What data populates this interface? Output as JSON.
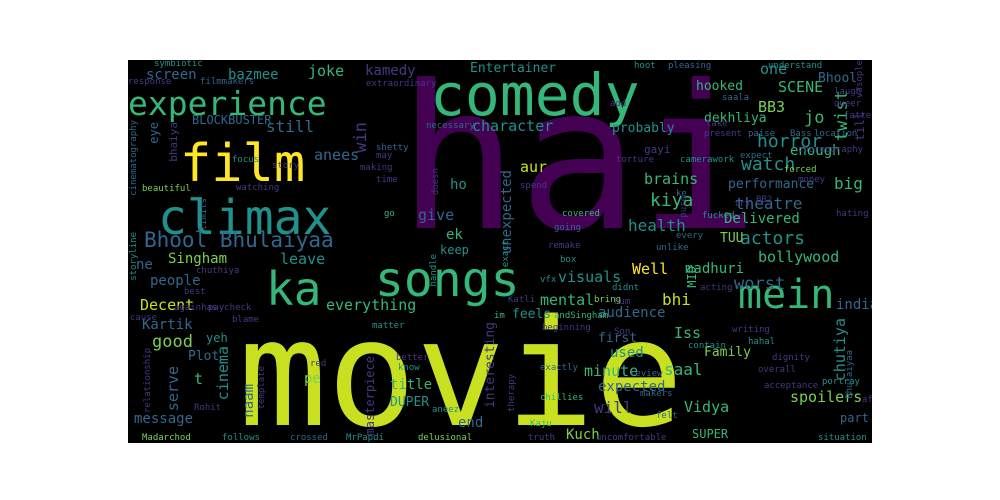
{
  "palette": {
    "background": "#000000",
    "page": "#ffffff",
    "lime": "#c8e020",
    "green": "#7ad151",
    "seafoam": "#35b779",
    "teal": "#21918c",
    "blue": "#31688e",
    "indigo": "#443983",
    "purple": "#440154",
    "yellow": "#fde725"
  },
  "words": [
    {
      "text": "hai",
      "color": "#440154"
    },
    {
      "text": "movie",
      "color": "#c8e020"
    },
    {
      "text": "comedy",
      "color": "#35b779"
    },
    {
      "text": "climax",
      "color": "#21918c"
    },
    {
      "text": "songs",
      "color": "#35b779"
    },
    {
      "text": "film",
      "color": "#fde725"
    },
    {
      "text": "ka",
      "color": "#35b779"
    },
    {
      "text": "experience",
      "color": "#35b779"
    },
    {
      "text": "mein",
      "color": "#35b779"
    },
    {
      "text": "Bhool Bhulaiyaa",
      "color": "#31688e"
    },
    {
      "text": "character",
      "color": "#21918c"
    },
    {
      "text": "actors",
      "color": "#21918c"
    },
    {
      "text": "watch",
      "color": "#21918c"
    },
    {
      "text": "horror",
      "color": "#21918c"
    },
    {
      "text": "theatre",
      "color": "#31688e"
    },
    {
      "text": "kiya",
      "color": "#35b779"
    },
    {
      "text": "twist",
      "color": "#35b779"
    },
    {
      "text": "bollywood",
      "color": "#35b779"
    },
    {
      "text": "worst",
      "color": "#31688e"
    },
    {
      "text": "mental",
      "color": "#35b779"
    },
    {
      "text": "health",
      "color": "#21918c"
    },
    {
      "text": "joke",
      "color": "#35b779"
    },
    {
      "text": "kamedy",
      "color": "#443983"
    },
    {
      "text": "screen",
      "color": "#31688e"
    },
    {
      "text": "bazmee",
      "color": "#21918c"
    },
    {
      "text": "still",
      "color": "#31688e"
    },
    {
      "text": "win",
      "color": "#443983"
    },
    {
      "text": "anees",
      "color": "#31688e"
    },
    {
      "text": "Singham",
      "color": "#7ad151"
    },
    {
      "text": "leave",
      "color": "#21918c"
    },
    {
      "text": "people",
      "color": "#31688e"
    },
    {
      "text": "ne",
      "color": "#31688e"
    },
    {
      "text": "everything",
      "color": "#35b779"
    },
    {
      "text": "Decent",
      "color": "#c8e020"
    },
    {
      "text": "Kartik",
      "color": "#31688e"
    },
    {
      "text": "good",
      "color": "#7ad151"
    },
    {
      "text": "yeh",
      "color": "#21918c"
    },
    {
      "text": "Plot",
      "color": "#31688e"
    },
    {
      "text": "serve",
      "color": "#31688e"
    },
    {
      "text": "t",
      "color": "#35b779"
    },
    {
      "text": "cinema",
      "color": "#21918c"
    },
    {
      "text": "pe",
      "color": "#7ad151"
    },
    {
      "text": "naam",
      "color": "#31688e"
    },
    {
      "text": "message",
      "color": "#31688e"
    },
    {
      "text": "title",
      "color": "#35b779"
    },
    {
      "text": "end",
      "color": "#31688e"
    },
    {
      "text": "Kuch",
      "color": "#7ad151"
    },
    {
      "text": "masterpiece",
      "color": "#443983"
    },
    {
      "text": "DUPER",
      "color": "#21918c"
    },
    {
      "text": "minute",
      "color": "#35b779"
    },
    {
      "text": "saal",
      "color": "#35b779"
    },
    {
      "text": "Vidya",
      "color": "#35b779"
    },
    {
      "text": "spoilers",
      "color": "#7ad151"
    },
    {
      "text": "part",
      "color": "#31688e"
    },
    {
      "text": "SUPER",
      "color": "#35b779"
    },
    {
      "text": "Family",
      "color": "#7ad151"
    },
    {
      "text": "Iss",
      "color": "#35b779"
    },
    {
      "text": "used",
      "color": "#21918c"
    },
    {
      "text": "first",
      "color": "#31688e"
    },
    {
      "text": "expected",
      "color": "#31688e"
    },
    {
      "text": "audience",
      "color": "#31688e"
    },
    {
      "text": "will",
      "color": "#443983"
    },
    {
      "text": "chutiya",
      "color": "#21918c"
    },
    {
      "text": "indian",
      "color": "#31688e"
    },
    {
      "text": "madhuri",
      "color": "#35b779"
    },
    {
      "text": "visuals",
      "color": "#21918c"
    },
    {
      "text": "Well",
      "color": "#fde725"
    },
    {
      "text": "bhi",
      "color": "#c8e020"
    },
    {
      "text": "MID",
      "color": "#35b779"
    },
    {
      "text": "performance",
      "color": "#31688e"
    },
    {
      "text": "enough",
      "color": "#35b779"
    },
    {
      "text": "brains",
      "color": "#35b779"
    },
    {
      "text": "big",
      "color": "#35b779"
    },
    {
      "text": "jo",
      "color": "#35b779"
    },
    {
      "text": "BB3",
      "color": "#7ad151"
    },
    {
      "text": "SCENE",
      "color": "#35b779"
    },
    {
      "text": "one",
      "color": "#21918c"
    },
    {
      "text": "Bhool",
      "color": "#31688e"
    },
    {
      "text": "till",
      "color": "#443983"
    },
    {
      "text": "hooked",
      "color": "#35b779"
    },
    {
      "text": "dekhliya",
      "color": "#35b779"
    },
    {
      "text": "probably",
      "color": "#21918c"
    },
    {
      "text": "aur",
      "color": "#c8e020"
    },
    {
      "text": "give",
      "color": "#31688e"
    },
    {
      "text": "ek",
      "color": "#35b779"
    },
    {
      "text": "keep",
      "color": "#21918c"
    },
    {
      "text": "ho",
      "color": "#21918c"
    },
    {
      "text": "unexpected",
      "color": "#31688e"
    },
    {
      "text": "interesting",
      "color": "#443983"
    },
    {
      "text": "feels",
      "color": "#21918c"
    },
    {
      "text": "gayi",
      "color": "#443983"
    },
    {
      "text": "Delivered",
      "color": "#35b779"
    },
    {
      "text": "TUU",
      "color": "#7ad151"
    },
    {
      "text": "Entertainer",
      "color": "#21918c"
    },
    {
      "text": "BLOCKBUSTER",
      "color": "#31688e"
    },
    {
      "text": "bhaiya",
      "color": "#443983"
    },
    {
      "text": "eye",
      "color": "#31688e"
    },
    {
      "text": "cinematography",
      "color": "#31688e"
    },
    {
      "text": "beautiful",
      "color": "#7ad151"
    },
    {
      "text": "storyline",
      "color": "#21918c"
    },
    {
      "text": "relationship",
      "color": "#443983"
    },
    {
      "text": "chuthiya",
      "color": "#443983"
    },
    {
      "text": "Madarchod",
      "color": "#7ad151"
    },
    {
      "text": "follows",
      "color": "#21918c"
    },
    {
      "text": "crossed",
      "color": "#31688e"
    },
    {
      "text": "MrPapdi",
      "color": "#21918c"
    },
    {
      "text": "delusional",
      "color": "#7ad151"
    },
    {
      "text": "aneez",
      "color": "#21918c"
    },
    {
      "text": "Rohit",
      "color": "#443983"
    },
    {
      "text": "template",
      "color": "#443983"
    },
    {
      "text": "Kaju",
      "color": "#35b779"
    },
    {
      "text": "truth",
      "color": "#443983"
    },
    {
      "text": "uncomfortable",
      "color": "#443983"
    },
    {
      "text": "situation",
      "color": "#21918c"
    },
    {
      "text": "acceptance",
      "color": "#443983"
    },
    {
      "text": "portray",
      "color": "#21918c"
    },
    {
      "text": "dignity",
      "color": "#443983"
    },
    {
      "text": "overall",
      "color": "#443983"
    },
    {
      "text": "makers",
      "color": "#31688e"
    },
    {
      "text": "chillies",
      "color": "#35b779"
    },
    {
      "text": "review",
      "color": "#31688e"
    },
    {
      "text": "Son",
      "color": "#443983"
    },
    {
      "text": "writing",
      "color": "#443983"
    },
    {
      "text": "hahal",
      "color": "#21918c"
    },
    {
      "text": "bring",
      "color": "#7ad151"
    },
    {
      "text": "didnt",
      "color": "#21918c"
    },
    {
      "text": "forced",
      "color": "#7ad151"
    },
    {
      "text": "money",
      "color": "#443983"
    },
    {
      "text": "fattest",
      "color": "#443983"
    },
    {
      "text": "location",
      "color": "#31688e"
    },
    {
      "text": "choreography",
      "color": "#443983"
    },
    {
      "text": "hating",
      "color": "#443983"
    },
    {
      "text": "queer",
      "color": "#443983"
    },
    {
      "text": "laugh",
      "color": "#443983"
    },
    {
      "text": "vasople",
      "color": "#443983"
    },
    {
      "text": "understand",
      "color": "#21918c"
    },
    {
      "text": "pleasing",
      "color": "#31688e"
    },
    {
      "text": "hoot",
      "color": "#21918c"
    },
    {
      "text": "symbiotic",
      "color": "#21918c"
    },
    {
      "text": "filmmakers",
      "color": "#31688e"
    },
    {
      "text": "extraordinary",
      "color": "#443983"
    },
    {
      "text": "response",
      "color": "#443983"
    },
    {
      "text": "necessary",
      "color": "#31688e"
    },
    {
      "text": "saala",
      "color": "#31688e"
    },
    {
      "text": "add",
      "color": "#443983"
    },
    {
      "text": "present",
      "color": "#443983"
    },
    {
      "text": "take",
      "color": "#443983"
    },
    {
      "text": "paise",
      "color": "#31688e"
    },
    {
      "text": "Bass",
      "color": "#31688e"
    },
    {
      "text": "shetty",
      "color": "#31688e"
    },
    {
      "text": "torture",
      "color": "#443983"
    },
    {
      "text": "camerawork",
      "color": "#21918c"
    },
    {
      "text": "expect",
      "color": "#31688e"
    },
    {
      "text": "story",
      "color": "#443983"
    },
    {
      "text": "focus",
      "color": "#21918c"
    },
    {
      "text": "making",
      "color": "#443983"
    },
    {
      "text": "watching",
      "color": "#443983"
    },
    {
      "text": "limits",
      "color": "#31688e"
    },
    {
      "text": "time",
      "color": "#443983"
    },
    {
      "text": "spend",
      "color": "#443983"
    },
    {
      "text": "covered",
      "color": "#35b779"
    },
    {
      "text": "going",
      "color": "#31688e"
    },
    {
      "text": "exact",
      "color": "#21918c"
    },
    {
      "text": "vfx",
      "color": "#21918c"
    },
    {
      "text": "box",
      "color": "#21918c"
    },
    {
      "text": "remake",
      "color": "#443983"
    },
    {
      "text": "acting",
      "color": "#443983"
    },
    {
      "text": "unlike",
      "color": "#31688e"
    },
    {
      "text": "every",
      "color": "#31688e"
    },
    {
      "text": "fucked",
      "color": "#21918c"
    },
    {
      "text": "BB2",
      "color": "#443983"
    },
    {
      "text": "try",
      "color": "#443983"
    },
    {
      "text": "go",
      "color": "#35b779"
    },
    {
      "text": "handle",
      "color": "#21918c"
    },
    {
      "text": "cause",
      "color": "#443983"
    },
    {
      "text": "againhas",
      "color": "#443983"
    },
    {
      "text": "blame",
      "color": "#443983"
    },
    {
      "text": "paycheck",
      "color": "#443983"
    },
    {
      "text": "best",
      "color": "#443983"
    },
    {
      "text": "matter",
      "color": "#21918c"
    },
    {
      "text": "Katli",
      "color": "#443983"
    },
    {
      "text": "im",
      "color": "#35b779"
    },
    {
      "text": "andSingham",
      "color": "#35b779"
    },
    {
      "text": "beginning",
      "color": "#443983"
    },
    {
      "text": "exactly",
      "color": "#31688e"
    },
    {
      "text": "contain",
      "color": "#21918c"
    },
    {
      "text": "red",
      "color": "#443983"
    },
    {
      "text": "better",
      "color": "#443983"
    },
    {
      "text": "know",
      "color": "#21918c"
    },
    {
      "text": "therapy",
      "color": "#443983"
    },
    {
      "text": "felt",
      "color": "#31688e"
    },
    {
      "text": "Bhulaiyaa",
      "color": "#31688e"
    },
    {
      "text": "af",
      "color": "#443983"
    },
    {
      "text": "doesn",
      "color": "#443983"
    },
    {
      "text": "may",
      "color": "#443983"
    },
    {
      "text": "ke",
      "color": "#31688e"
    },
    {
      "text": "pure",
      "color": "#443983"
    },
    {
      "text": "hum",
      "color": "#443983"
    }
  ]
}
